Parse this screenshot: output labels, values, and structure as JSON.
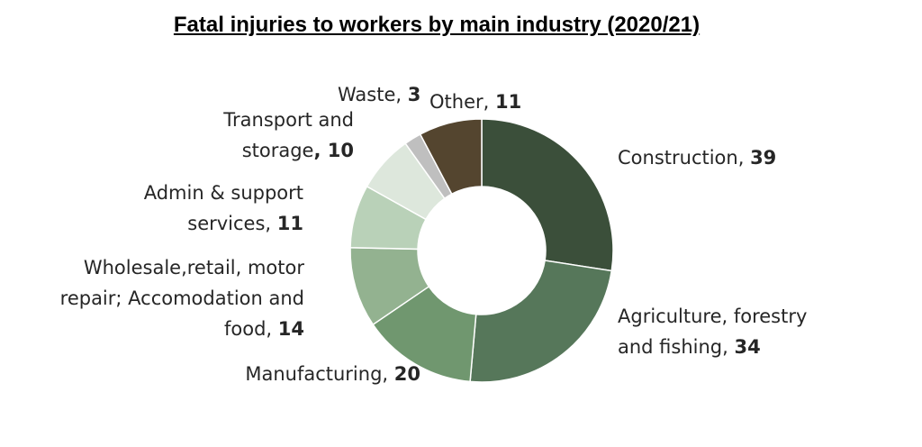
{
  "chart_data": {
    "type": "pie",
    "donut": true,
    "title": "Fatal injuries to workers by main industry (2020/21)",
    "slices": [
      {
        "name": "Construction",
        "value": 39,
        "color": "#3b4f3a",
        "label_lines": [
          "Construction, "
        ],
        "sep": ""
      },
      {
        "name": "Agriculture, forestry and fishing",
        "value": 34,
        "color": "#56775a",
        "label_lines": [
          "Agriculture, forestry",
          "and fishing, "
        ],
        "sep": ""
      },
      {
        "name": "Manufacturing",
        "value": 20,
        "color": "#70976f",
        "label_lines": [
          "Manufacturing, "
        ],
        "sep": ""
      },
      {
        "name": "Wholesale,retail, motor repair; Accomodation and food",
        "value": 14,
        "color": "#93b290",
        "label_lines": [
          "Wholesale,retail, motor",
          "repair; Accomodation and",
          "food, "
        ],
        "sep": ""
      },
      {
        "name": "Admin & support services",
        "value": 11,
        "color": "#b9d1b8",
        "label_lines": [
          "Admin & support",
          "services, "
        ],
        "sep": ""
      },
      {
        "name": "Transport and storage",
        "value": 10,
        "color": "#dde7dc",
        "label_lines": [
          "Transport and",
          "storage"
        ],
        "sep": ", "
      },
      {
        "name": "Waste",
        "value": 3,
        "color": "#bfbfbf",
        "label_lines": [
          "Waste, "
        ],
        "sep": ""
      },
      {
        "name": "Other",
        "value": 11,
        "color": "#54452f",
        "label_lines": [
          "Other, "
        ],
        "sep": ""
      }
    ]
  }
}
